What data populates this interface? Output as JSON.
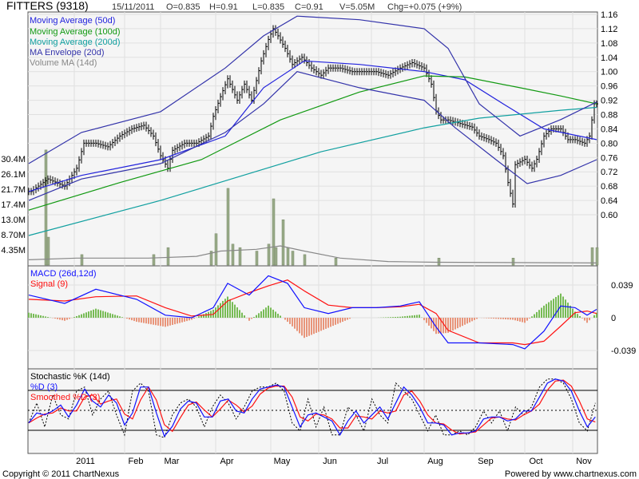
{
  "header": {
    "symbol": "FITTERS (9318)",
    "date": "15/11/2011",
    "open": "O=0.835",
    "high": "H=0.91",
    "low": "L=0.835",
    "close": "C=0.91",
    "volume": "V=5.05M",
    "change": "Chg=+0.075 (+9%)"
  },
  "legend": {
    "ma50": "Moving Average (50d)",
    "ma100": "Moving Average (100d)",
    "ma200": "Moving Average (200d)",
    "envelope": "MA Envelope (20d)",
    "volma": "Volume MA (14d)",
    "macd": "MACD (26d,12d)",
    "signal": "Signal (9)",
    "stoch_k": "Stochastic %K (14d)",
    "stoch_d": "%D (3)",
    "stoch_sd": "Smoothed %D (3)"
  },
  "colors": {
    "ma50": "#2222dd",
    "ma100": "#119911",
    "ma200": "#11a0a0",
    "envelope": "#3333aa",
    "volume": "#99aa88",
    "volma": "#888888",
    "macd": "#1111ff",
    "signal": "#ff1111",
    "hist_pos": "#77bb55",
    "hist_neg": "#e8957a"
  },
  "footer": {
    "copyright": "Copyright © 2011 ChartNexus",
    "powered": "Powered by www.chartnexus.com"
  },
  "chart_data": [
    {
      "type": "line",
      "title": "FITTERS (9318) price",
      "x_unit": "trading day index",
      "ylim": [
        0.6,
        1.16
      ],
      "y_ticks": [
        "1.16",
        "1.12",
        "1.08",
        "1.04",
        "1.00",
        "0.96",
        "0.92",
        "0.88",
        "0.84",
        "0.80",
        "0.76",
        "0.72",
        "0.68",
        "0.64",
        "0.60"
      ],
      "months": [
        {
          "label": "2011",
          "day": 19
        },
        {
          "label": "Feb",
          "day": 40
        },
        {
          "label": "Mar",
          "day": 55
        },
        {
          "label": "Apr",
          "day": 78
        },
        {
          "label": "May",
          "day": 101
        },
        {
          "label": "Jun",
          "day": 121
        },
        {
          "label": "Jul",
          "day": 143
        },
        {
          "label": "Aug",
          "day": 165
        },
        {
          "label": "Sep",
          "day": 186
        },
        {
          "label": "Oct",
          "day": 207
        },
        {
          "label": "Nov",
          "day": 227
        }
      ],
      "close": [
        [
          1,
          0.665
        ],
        [
          8,
          0.7
        ],
        [
          15,
          0.68
        ],
        [
          20,
          0.73
        ],
        [
          23,
          0.8
        ],
        [
          28,
          0.8
        ],
        [
          33,
          0.79
        ],
        [
          38,
          0.82
        ],
        [
          43,
          0.84
        ],
        [
          48,
          0.85
        ],
        [
          52,
          0.82
        ],
        [
          55,
          0.765
        ],
        [
          58,
          0.73
        ],
        [
          60,
          0.78
        ],
        [
          65,
          0.8
        ],
        [
          70,
          0.8
        ],
        [
          75,
          0.82
        ],
        [
          77,
          0.875
        ],
        [
          80,
          0.93
        ],
        [
          83,
          0.98
        ],
        [
          87,
          0.92
        ],
        [
          90,
          0.965
        ],
        [
          93,
          0.92
        ],
        [
          97,
          1.03
        ],
        [
          100,
          1.09
        ],
        [
          102,
          1.12
        ],
        [
          104,
          1.1
        ],
        [
          107,
          1.065
        ],
        [
          110,
          1.02
        ],
        [
          114,
          1.04
        ],
        [
          118,
          1.01
        ],
        [
          122,
          0.99
        ],
        [
          125,
          1.01
        ],
        [
          130,
          1.01
        ],
        [
          135,
          1.0
        ],
        [
          140,
          1.0
        ],
        [
          145,
          1.0
        ],
        [
          150,
          0.99
        ],
        [
          155,
          1.01
        ],
        [
          160,
          1.025
        ],
        [
          165,
          1.01
        ],
        [
          168,
          0.965
        ],
        [
          170,
          0.89
        ],
        [
          172,
          0.865
        ],
        [
          175,
          0.865
        ],
        [
          180,
          0.855
        ],
        [
          185,
          0.845
        ],
        [
          188,
          0.82
        ],
        [
          192,
          0.81
        ],
        [
          195,
          0.8
        ],
        [
          198,
          0.765
        ],
        [
          200,
          0.69
        ],
        [
          202,
          0.63
        ],
        [
          203,
          0.74
        ],
        [
          207,
          0.755
        ],
        [
          210,
          0.73
        ],
        [
          212,
          0.755
        ],
        [
          215,
          0.82
        ],
        [
          218,
          0.84
        ],
        [
          222,
          0.84
        ],
        [
          225,
          0.81
        ],
        [
          228,
          0.81
        ],
        [
          232,
          0.8
        ],
        [
          234,
          0.82
        ],
        [
          236,
          0.91
        ]
      ],
      "series": [
        {
          "name": "Moving Average (50d)",
          "points": [
            [
              0,
              0.665
            ],
            [
              22,
              0.71
            ],
            [
              55,
              0.754
            ],
            [
              82,
              0.82
            ],
            [
              98,
              0.955
            ],
            [
              115,
              1.03
            ],
            [
              138,
              1.02
            ],
            [
              165,
              1.0
            ],
            [
              182,
              0.977
            ],
            [
              198,
              0.91
            ],
            [
              215,
              0.84
            ],
            [
              237,
              0.81
            ]
          ]
        },
        {
          "name": "Moving Average (100d)",
          "points": [
            [
              0,
              0.613
            ],
            [
              38,
              0.69
            ],
            [
              72,
              0.754
            ],
            [
              105,
              0.865
            ],
            [
              138,
              0.943
            ],
            [
              165,
              0.988
            ],
            [
              182,
              0.985
            ],
            [
              205,
              0.955
            ],
            [
              222,
              0.932
            ],
            [
              237,
              0.91
            ]
          ]
        },
        {
          "name": "Moving Average (200d)",
          "points": [
            [
              0,
              0.542
            ],
            [
              55,
              0.64
            ],
            [
              122,
              0.776
            ],
            [
              165,
              0.843
            ],
            [
              188,
              0.87
            ],
            [
              222,
              0.892
            ],
            [
              237,
              0.9
            ]
          ]
        },
        {
          "name": "MA Envelope upper",
          "points": [
            [
              0,
              0.743
            ],
            [
              22,
              0.83
            ],
            [
              55,
              0.888
            ],
            [
              82,
              1.01
            ],
            [
              98,
              1.1
            ],
            [
              112,
              1.155
            ],
            [
              138,
              1.145
            ],
            [
              165,
              1.12
            ],
            [
              175,
              1.065
            ],
            [
              188,
              0.91
            ],
            [
              205,
              0.82
            ],
            [
              222,
              0.866
            ],
            [
              237,
              0.915
            ]
          ]
        },
        {
          "name": "MA Envelope lower",
          "points": [
            [
              0,
              0.64
            ],
            [
              22,
              0.7
            ],
            [
              55,
              0.743
            ],
            [
              82,
              0.83
            ],
            [
              98,
              0.91
            ],
            [
              112,
              1.0
            ],
            [
              138,
              0.955
            ],
            [
              165,
              0.92
            ],
            [
              178,
              0.843
            ],
            [
              195,
              0.754
            ],
            [
              208,
              0.687
            ],
            [
              222,
              0.71
            ],
            [
              237,
              0.754
            ]
          ]
        }
      ]
    },
    {
      "type": "bar",
      "title": "Volume",
      "unit": "M",
      "y_ticks": [
        "30.4M",
        "26.1M",
        "21.7M",
        "17.4M",
        "13.0M",
        "8.70M",
        "4.35M"
      ],
      "bars": [
        [
          7,
          33
        ],
        [
          8,
          8
        ],
        [
          22,
          3
        ],
        [
          52,
          3
        ],
        [
          58,
          5
        ],
        [
          76,
          4
        ],
        [
          78,
          9
        ],
        [
          83,
          22
        ],
        [
          85,
          6
        ],
        [
          88,
          5
        ],
        [
          95,
          4
        ],
        [
          100,
          6
        ],
        [
          102,
          19
        ],
        [
          103,
          5
        ],
        [
          106,
          13
        ],
        [
          108,
          5
        ],
        [
          110,
          4
        ],
        [
          115,
          3
        ],
        [
          128,
          2
        ],
        [
          171,
          2
        ],
        [
          202,
          2
        ],
        [
          235,
          5
        ],
        [
          237,
          5
        ]
      ],
      "ma": [
        [
          0,
          1.5
        ],
        [
          20,
          2
        ],
        [
          50,
          2
        ],
        [
          70,
          2.5
        ],
        [
          80,
          4
        ],
        [
          95,
          4.5
        ],
        [
          105,
          5.5
        ],
        [
          115,
          4
        ],
        [
          130,
          2
        ],
        [
          150,
          1
        ],
        [
          170,
          0.8
        ],
        [
          237,
          0.6
        ]
      ]
    },
    {
      "type": "line",
      "title": "MACD (26d,12d)",
      "y_ticks": [
        "0.039",
        "0",
        "-0.039"
      ],
      "macd": [
        [
          0,
          0.027
        ],
        [
          15,
          0.017
        ],
        [
          28,
          0.034
        ],
        [
          45,
          0.022
        ],
        [
          57,
          0.003
        ],
        [
          68,
          0
        ],
        [
          77,
          0.012
        ],
        [
          83,
          0.041
        ],
        [
          92,
          0.027
        ],
        [
          100,
          0.05
        ],
        [
          108,
          0.041
        ],
        [
          115,
          0.012
        ],
        [
          125,
          0.005
        ],
        [
          135,
          0.012
        ],
        [
          145,
          0.012
        ],
        [
          155,
          0.014
        ],
        [
          163,
          0.019
        ],
        [
          170,
          -0.011
        ],
        [
          175,
          -0.03
        ],
        [
          188,
          -0.03
        ],
        [
          202,
          -0.032
        ],
        [
          207,
          -0.037
        ],
        [
          215,
          -0.016
        ],
        [
          222,
          0.014
        ],
        [
          228,
          0.012
        ],
        [
          233,
          0.003
        ],
        [
          237,
          0.01
        ]
      ],
      "signal": [
        [
          0,
          0.022
        ],
        [
          15,
          0.02
        ],
        [
          28,
          0.025
        ],
        [
          45,
          0.026
        ],
        [
          57,
          0.012
        ],
        [
          68,
          0.002
        ],
        [
          77,
          0.004
        ],
        [
          83,
          0.02
        ],
        [
          92,
          0.03
        ],
        [
          100,
          0.038
        ],
        [
          108,
          0.045
        ],
        [
          115,
          0.032
        ],
        [
          125,
          0.015
        ],
        [
          135,
          0.012
        ],
        [
          145,
          0.012
        ],
        [
          155,
          0.013
        ],
        [
          163,
          0.016
        ],
        [
          170,
          0.005
        ],
        [
          175,
          -0.015
        ],
        [
          188,
          -0.03
        ],
        [
          202,
          -0.03
        ],
        [
          207,
          -0.032
        ],
        [
          215,
          -0.028
        ],
        [
          222,
          -0.01
        ],
        [
          228,
          0.006
        ],
        [
          233,
          0.008
        ],
        [
          237,
          0.005
        ]
      ]
    },
    {
      "type": "line",
      "title": "Stochastic %K (14d)",
      "levels": [
        80,
        50,
        20
      ],
      "k_step_days": 3.33,
      "k": [
        31,
        61,
        25,
        73,
        43,
        37,
        79,
        85,
        43,
        67,
        79,
        43,
        13,
        79,
        91,
        79,
        13,
        9,
        43,
        61,
        67,
        55,
        25,
        55,
        73,
        61,
        37,
        55,
        79,
        85,
        85,
        91,
        79,
        31,
        19,
        67,
        25,
        55,
        13,
        13,
        55,
        43,
        19,
        67,
        43,
        31,
        91,
        79,
        67,
        43,
        19,
        43,
        13,
        13,
        19,
        13,
        25,
        49,
        31,
        49,
        19,
        55,
        43,
        55,
        85,
        97,
        97,
        91,
        67,
        31,
        19,
        61
      ]
    }
  ]
}
